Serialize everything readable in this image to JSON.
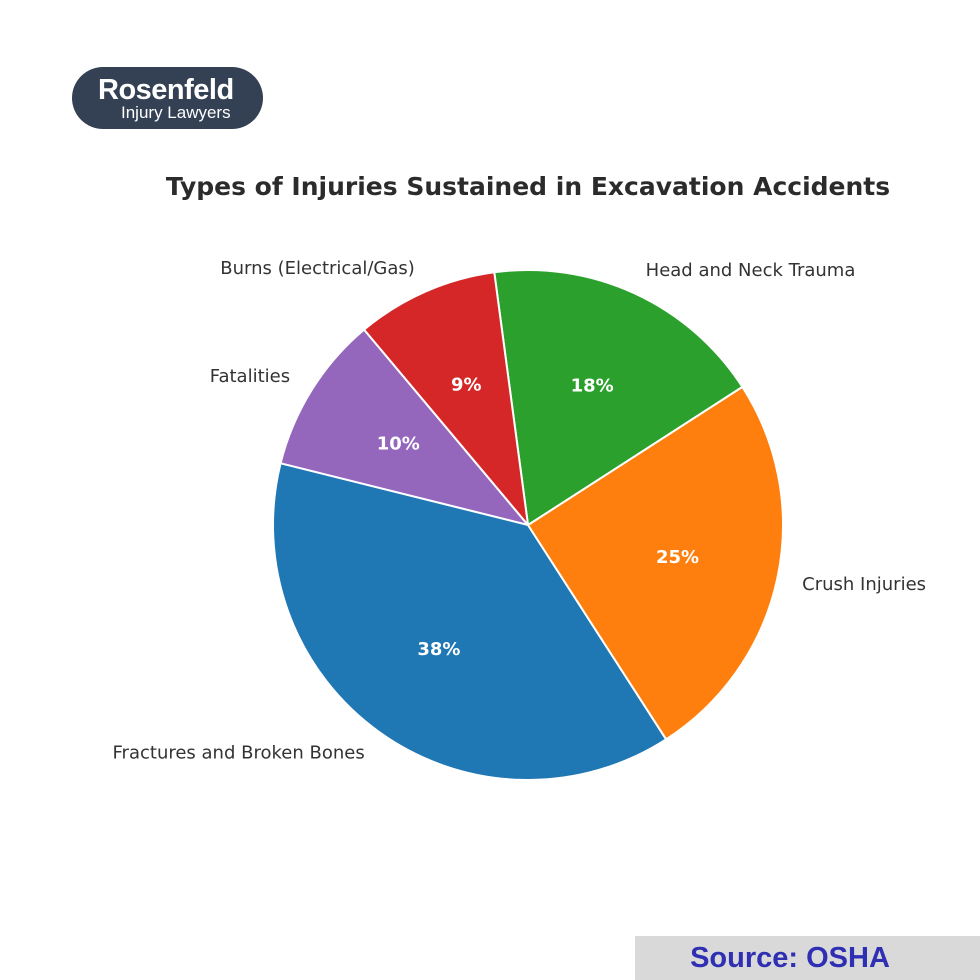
{
  "logo": {
    "name": "Rosenfeld",
    "subtitle": "Injury Lawyers"
  },
  "source": "Source: OSHA",
  "chart_data": {
    "type": "pie",
    "title": "Types of Injuries Sustained in Excavation Accidents",
    "start_angle_deg": 130,
    "direction": "counterclockwise",
    "slices": [
      {
        "label": "Fatalities",
        "value": 10,
        "pct_label": "10%",
        "color": "#9467bd"
      },
      {
        "label": "Fractures and Broken Bones",
        "value": 38,
        "pct_label": "38%",
        "color": "#1f77b4"
      },
      {
        "label": "Crush Injuries",
        "value": 25,
        "pct_label": "25%",
        "color": "#ff7f0e"
      },
      {
        "label": "Head and Neck Trauma",
        "value": 18,
        "pct_label": "18%",
        "color": "#2ca02c"
      },
      {
        "label": "Burns (Electrical/Gas)",
        "value": 9,
        "pct_label": "9%",
        "color": "#d62728"
      }
    ]
  }
}
